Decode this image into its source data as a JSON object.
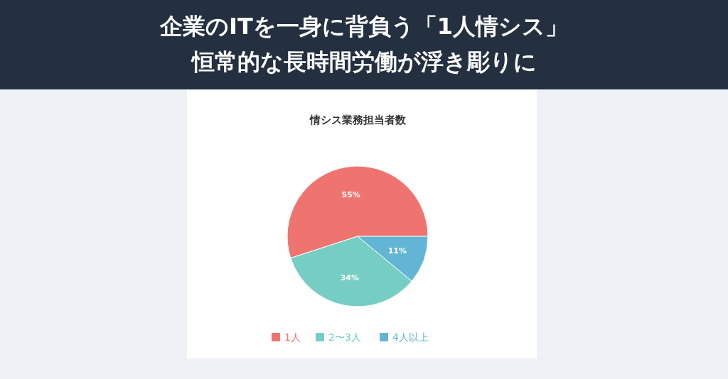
{
  "chart_data": {
    "type": "pie",
    "title": "企業のITを一身に背負う「1人情シス」恒常的な長時間労働が浮き彫りに",
    "subtitle": "情シス業務担当者数",
    "categories": [
      "1人",
      "2〜3人",
      "4人以上"
    ],
    "values": [
      55,
      34,
      11
    ],
    "value_labels": [
      "55%",
      "34%",
      "11%"
    ],
    "colors": [
      "#ef7470",
      "#76cdc4",
      "#62b5d4"
    ],
    "legend": "bottom"
  }
}
